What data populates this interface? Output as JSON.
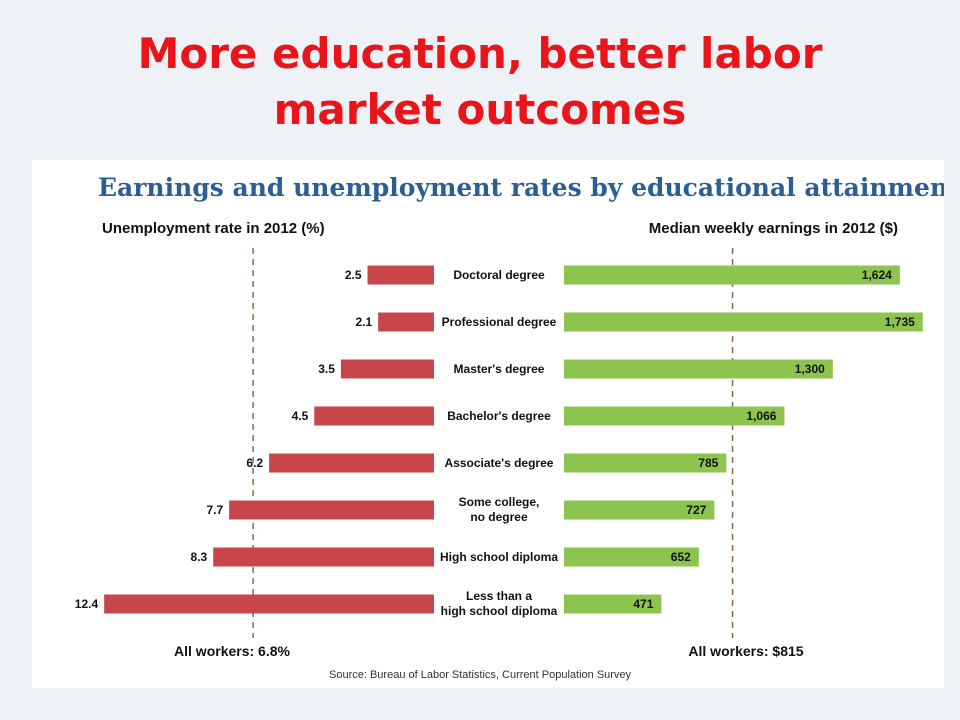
{
  "slide": {
    "title_lines": [
      "More education, better labor",
      "market outcomes"
    ]
  },
  "chart_data": {
    "type": "bar",
    "title": "Earnings and unemployment rates by educational attainment",
    "categories": [
      [
        "Doctoral degree"
      ],
      [
        "Professional degree"
      ],
      [
        "Master's degree"
      ],
      [
        "Bachelor's degree"
      ],
      [
        "Associate's degree"
      ],
      [
        "Some college,",
        "no degree"
      ],
      [
        "High school diploma"
      ],
      [
        "Less than a",
        "high school diploma"
      ]
    ],
    "left_panel": {
      "title": "Unemployment rate in 2012 (%)",
      "values": [
        2.5,
        2.1,
        3.5,
        4.5,
        6.2,
        7.7,
        8.3,
        12.4
      ],
      "labels": [
        "2.5",
        "2.1",
        "3.5",
        "4.5",
        "6.2",
        "7.7",
        "8.3",
        "12.4"
      ],
      "reference_value": 6.8,
      "reference_label": "All workers: 6.8%",
      "color": "#c8454a"
    },
    "right_panel": {
      "title": "Median weekly earnings in 2012 ($)",
      "values": [
        1624,
        1735,
        1300,
        1066,
        785,
        727,
        652,
        471
      ],
      "labels": [
        "1,624",
        "1,735",
        "1,300",
        "1,066",
        "785",
        "727",
        "652",
        "471"
      ],
      "reference_value": 815,
      "reference_label": "All workers: $815",
      "color": "#8dc44f"
    },
    "source": "Source: Bureau of Labor Statistics, Current Population Survey",
    "grid": false,
    "legend": "none"
  }
}
